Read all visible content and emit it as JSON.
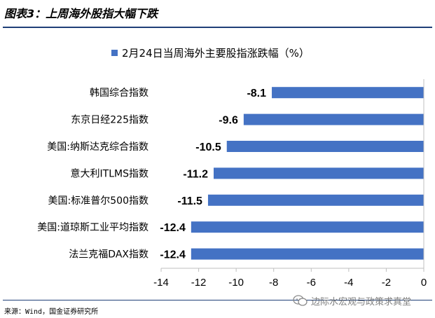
{
  "header": {
    "title": "图表3：上周海外股指大幅下跌"
  },
  "footer": {
    "source": "来源：Wind，国金证券研究所",
    "watermark": "边际水宏观与政策求真堂"
  },
  "chart_data": {
    "type": "bar",
    "orientation": "horizontal",
    "legend": "2月24日当周海外主要股指涨跌幅（%）",
    "legend_position": "top",
    "categories": [
      "韩国综合指数",
      "东京日经225指数",
      "美国:纳斯达克综合指数",
      "意大利ITLMS指数",
      "美国:标准普尔500指数",
      "美国:道琼斯工业平均指数",
      "法兰克福DAX指数"
    ],
    "values": [
      -8.1,
      -9.6,
      -10.5,
      -11.2,
      -11.5,
      -12.4,
      -12.4
    ],
    "value_labels": [
      "-8.1",
      "-9.6",
      "-10.5",
      "-11.2",
      "-11.5",
      "-12.4",
      "-12.4"
    ],
    "xlim": [
      -14,
      0
    ],
    "xticks": [
      -14,
      -12,
      -10,
      -8,
      -6,
      -4,
      -2,
      0
    ],
    "xtick_labels": [
      "-14",
      "-12",
      "-10",
      "-8",
      "-6",
      "-4",
      "-2",
      "0"
    ],
    "bar_color": "#4472c4",
    "grid": false
  }
}
